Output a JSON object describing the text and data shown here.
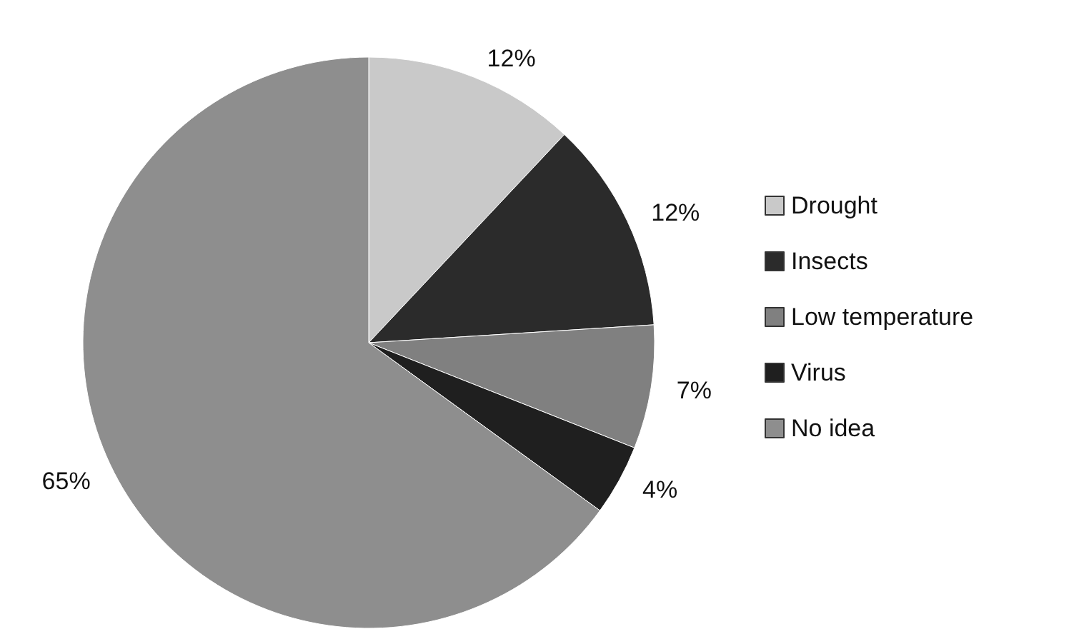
{
  "chart_data": {
    "type": "pie",
    "categories": [
      "Drought",
      "Insects",
      "Low temperature",
      "Virus",
      "No idea"
    ],
    "values": [
      12,
      12,
      7,
      4,
      65
    ],
    "colors": [
      "#c9c9c9",
      "#2b2b2b",
      "#808080",
      "#1f1f1f",
      "#8e8e8e"
    ],
    "value_labels": [
      "12%",
      "12%",
      "7%",
      "4%",
      "65%"
    ],
    "legend": "right"
  }
}
